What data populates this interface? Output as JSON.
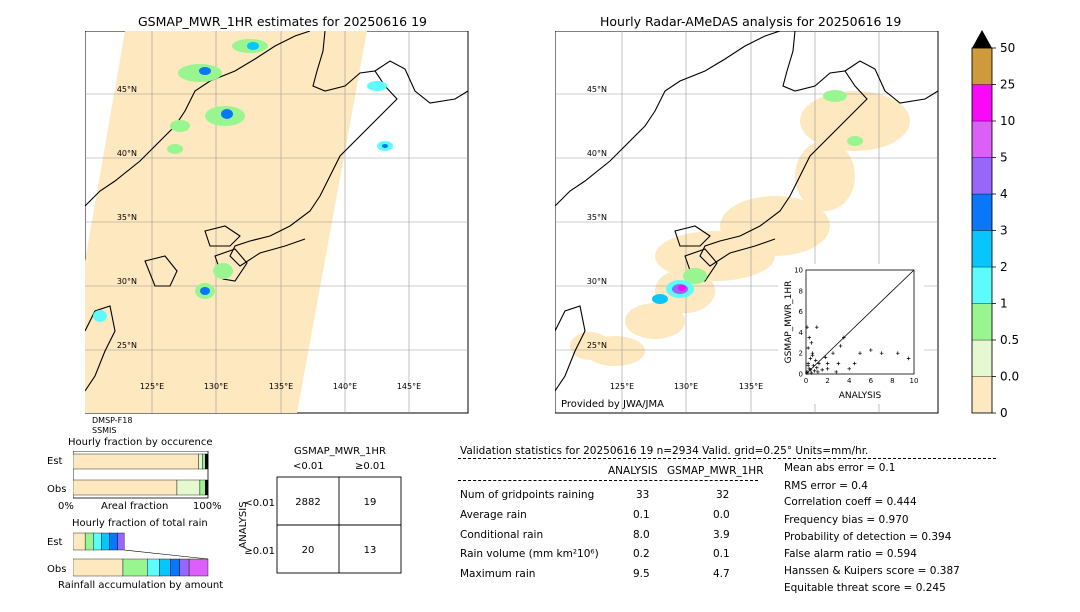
{
  "left_map": {
    "title": "GSMAP_MWR_1HR estimates for 20250616 19",
    "lat_labels": [
      "45°N",
      "40°N",
      "35°N",
      "30°N",
      "25°N"
    ],
    "lon_labels": [
      "125°E",
      "130°E",
      "135°E",
      "140°E",
      "145°E"
    ],
    "sensors": [
      "DMSP-F18",
      "SSMIS"
    ]
  },
  "right_map": {
    "title": "Hourly Radar-AMeDAS analysis for 20250616 19",
    "lat_labels": [
      "45°N",
      "40°N",
      "35°N",
      "30°N",
      "25°N"
    ],
    "lon_labels": [
      "125°E",
      "130°E",
      "135°E"
    ],
    "credit": "Provided by JWA/JMA"
  },
  "colorbar": {
    "labels": [
      "0",
      "0.01",
      "0.5",
      "1",
      "2",
      "3",
      "4",
      "5",
      "10",
      "25",
      "50"
    ],
    "colors": [
      "#fde8bf",
      "#e6f8d2",
      "#99f58f",
      "#5dfbfb",
      "#06c6fa",
      "#0877f8",
      "#9966fa",
      "#dc60f8",
      "#fa08f8",
      "#cf9a3c"
    ]
  },
  "scatter": {
    "ylabel": "GSMAP_MWR_1HR",
    "xlabel": "ANALYSIS",
    "ticks": [
      "0",
      "2",
      "4",
      "6",
      "8",
      "10"
    ],
    "points": [
      [
        0.1,
        0.2
      ],
      [
        0.3,
        0.5
      ],
      [
        0.5,
        0.1
      ],
      [
        0.2,
        1.0
      ],
      [
        0.8,
        0.3
      ],
      [
        1.0,
        0.6
      ],
      [
        0.4,
        1.5
      ],
      [
        0.2,
        2.5
      ],
      [
        0.6,
        2.0
      ],
      [
        1.2,
        1.0
      ],
      [
        1.5,
        0.4
      ],
      [
        0.3,
        3.5
      ],
      [
        0.1,
        4.5
      ],
      [
        1.0,
        4.5
      ],
      [
        0.5,
        3.0
      ],
      [
        2.0,
        1.0
      ],
      [
        2.5,
        2.0
      ],
      [
        3.0,
        1.0
      ],
      [
        3.5,
        3.5
      ],
      [
        4.0,
        0.5
      ],
      [
        5.0,
        2.0
      ],
      [
        6.0,
        2.3
      ],
      [
        7.0,
        2.0
      ],
      [
        8.5,
        2.0
      ],
      [
        9.5,
        1.5
      ],
      [
        4.5,
        1.0
      ],
      [
        2.8,
        0.2
      ],
      [
        2.0,
        0.5
      ],
      [
        1.8,
        1.6
      ],
      [
        0.9,
        1.3
      ],
      [
        0.7,
        0.8
      ],
      [
        0.4,
        0.4
      ],
      [
        0.1,
        0.1
      ],
      [
        1.1,
        0.2
      ],
      [
        0.2,
        0.8
      ],
      [
        3.2,
        2.7
      ],
      [
        0.6,
        1.8
      ]
    ]
  },
  "fraction_occurrence": {
    "title": "Hourly fraction by occurence",
    "row_labels": [
      "Est",
      "Obs"
    ],
    "axis_left": "0%",
    "axis_mid": "Areal fraction",
    "axis_right": "100%",
    "est": [
      0.93,
      0.03,
      0.02,
      0.02
    ],
    "obs": [
      0.77,
      0.17,
      0.04,
      0.02
    ]
  },
  "fraction_total": {
    "title": "Hourly fraction of total rain",
    "row_labels": [
      "Est",
      "Obs"
    ],
    "axis_caption": "Rainfall accumulation by amount",
    "est_widths": [
      0.09,
      0.06,
      0.06,
      0.06,
      0.06,
      0.05
    ],
    "obs_widths": [
      0.37,
      0.18,
      0.09,
      0.08,
      0.07,
      0.07,
      0.14
    ]
  },
  "contingency": {
    "col_header": "GSMAP_MWR_1HR",
    "col_labels": [
      "<0.01",
      "≥0.01"
    ],
    "row_header": "ANALYSIS",
    "row_labels": [
      "<0.01",
      "≥0.01"
    ],
    "cells": [
      [
        "2882",
        "19"
      ],
      [
        "20",
        "13"
      ]
    ]
  },
  "validation": {
    "header": "Validation statistics for 20250616 19  n=2934 Valid. grid=0.25° Units=mm/hr.",
    "col1": "ANALYSIS",
    "col2": "GSMAP_MWR_1HR",
    "rows": [
      {
        "label": "Num of gridpoints raining",
        "a": "33",
        "b": "32"
      },
      {
        "label": "Average rain",
        "a": "0.1",
        "b": "0.0"
      },
      {
        "label": "Conditional rain",
        "a": "8.0",
        "b": "3.9"
      },
      {
        "label": "Rain volume (mm km²10⁶)",
        "a": "0.2",
        "b": "0.1"
      },
      {
        "label": "Maximum rain",
        "a": "9.5",
        "b": "4.7"
      }
    ],
    "scores": [
      "Mean abs error =    0.1",
      "RMS error =    0.4",
      "Correlation coeff =  0.444",
      "Frequency bias =  0.970",
      "Probability of detection =  0.394",
      "False alarm ratio =  0.594",
      "Hanssen & Kuipers score =  0.387",
      "Equitable threat score =  0.245"
    ]
  },
  "chart_data": [
    {
      "type": "scatter",
      "title": "",
      "xlabel": "ANALYSIS",
      "ylabel": "GSMAP_MWR_1HR",
      "xlim": [
        0,
        10
      ],
      "ylim": [
        0,
        10
      ]
    },
    {
      "type": "table",
      "title": "Validation statistics for 20250616 19  n=2934 Valid. grid=0.25° Units=mm/hr.",
      "columns": [
        "ANALYSIS",
        "GSMAP_MWR_1HR"
      ],
      "rows": [
        [
          "33",
          "32"
        ],
        [
          "0.1",
          "0.0"
        ],
        [
          "8.0",
          "3.9"
        ],
        [
          "0.2",
          "0.1"
        ],
        [
          "9.5",
          "4.7"
        ]
      ]
    }
  ]
}
